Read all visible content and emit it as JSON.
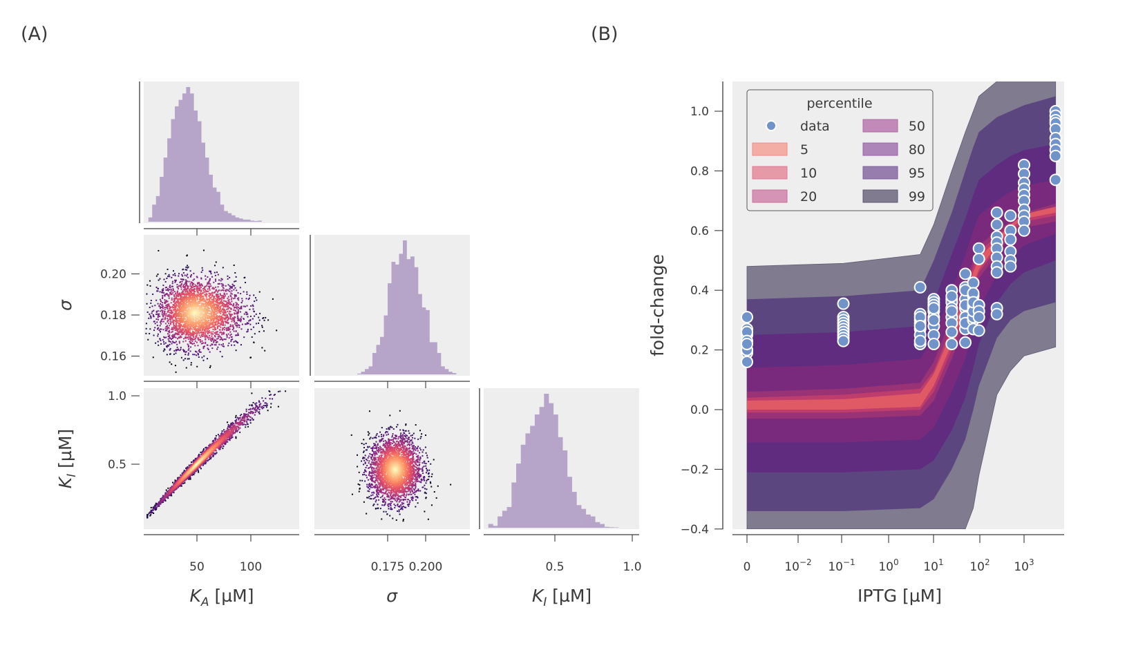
{
  "panel_labels": {
    "a": "(A)",
    "b": "(B)"
  },
  "colors": {
    "background": "#eeeeee",
    "histogram": "#b6a4c9",
    "axis": "#3a3a3a",
    "data_point": "#7093c9",
    "data_point_edge": "#ffffff"
  },
  "chart_data": [
    {
      "id": "corner-plot",
      "type": "scatter",
      "title": "",
      "parameters": [
        {
          "key": "KA",
          "label_main": "K",
          "label_sub": "A",
          "label_unit": " [µM]",
          "range": [
            0,
            145
          ],
          "ticks": [
            50,
            100
          ],
          "tick_labels": [
            "50",
            "100"
          ]
        },
        {
          "key": "sigma",
          "label_main": "σ",
          "label_sub": "",
          "label_unit": "",
          "range": [
            0.152,
            0.218
          ],
          "ticks": [
            0.175,
            0.2
          ],
          "tick_labels": [
            "0.175",
            "0.200"
          ],
          "y_ticks": [
            0.16,
            0.18,
            0.2
          ],
          "y_tick_labels": [
            "0.16",
            "0.18",
            "0.20"
          ]
        },
        {
          "key": "KI",
          "label_main": "K",
          "label_sub": "I",
          "label_unit": " [µM]",
          "range": [
            0.04,
            1.05
          ],
          "ticks": [
            0.5,
            1.0
          ],
          "tick_labels": [
            "0.5",
            "1.0"
          ]
        }
      ],
      "histograms": {
        "KA": {
          "bin_start": 5,
          "bin_width": 3.5,
          "counts": [
            2,
            8,
            12,
            21,
            30,
            39,
            48,
            54,
            57,
            60,
            63,
            60,
            52,
            47,
            37,
            30,
            22,
            16,
            14,
            8,
            5,
            4,
            3,
            2,
            1.5,
            1,
            1,
            0.5,
            0.3,
            0.5
          ]
        },
        "sigma": {
          "bin_start": 0.155,
          "bin_width": 0.0025,
          "counts": [
            0.3,
            1,
            2,
            3,
            8,
            11,
            14,
            22,
            34,
            42,
            41,
            45,
            50,
            43,
            44,
            40,
            30,
            25,
            24,
            12,
            12,
            8,
            3,
            2,
            1,
            0.5
          ]
        },
        "KI": {
          "bin_start": 0.07,
          "bin_width": 0.03,
          "counts": [
            2,
            1,
            6,
            9,
            11,
            24,
            34,
            44,
            50,
            54,
            60,
            64,
            71,
            66,
            60,
            48,
            41,
            27,
            19,
            12,
            10,
            7,
            6,
            3,
            2,
            0.5,
            0.3,
            0.2
          ]
        }
      },
      "scatter_pairs": [
        {
          "x": "KA",
          "y": "sigma",
          "center": [
            48,
            0.181
          ],
          "spread": [
            17,
            0.0085
          ],
          "correlation": 0.0,
          "n_points": 3000
        },
        {
          "x": "KA",
          "y": "KI",
          "center": [
            50,
            0.46
          ],
          "spread": [
            18,
            0.13
          ],
          "correlation": 0.99,
          "n_points": 3000
        },
        {
          "x": "sigma",
          "y": "KI",
          "center": [
            0.18,
            0.46
          ],
          "spread": [
            0.0085,
            0.12
          ],
          "correlation": 0.0,
          "n_points": 3000
        }
      ],
      "density_colormap": "magma"
    },
    {
      "id": "fold-change-plot",
      "type": "area",
      "title": "",
      "xlabel": "IPTG [µM]",
      "ylabel": "fold-change",
      "xscale": "symlog",
      "ylim": [
        -0.4,
        1.1
      ],
      "y_ticks": [
        -0.4,
        -0.2,
        0.0,
        0.2,
        0.4,
        0.6,
        0.8,
        1.0
      ],
      "y_tick_labels": [
        "−0.4",
        "−0.2",
        "0.0",
        "0.2",
        "0.4",
        "0.6",
        "0.8",
        "1.0"
      ],
      "x_ticks": [
        0,
        0.01,
        0.1,
        1,
        10,
        100,
        1000
      ],
      "x_tick_labels": [
        {
          "base": "0",
          "exp": ""
        },
        {
          "base": "10",
          "exp": "−2"
        },
        {
          "base": "10",
          "exp": "−1"
        },
        {
          "base": "10",
          "exp": "0"
        },
        {
          "base": "10",
          "exp": "1"
        },
        {
          "base": "10",
          "exp": "2"
        },
        {
          "base": "10",
          "exp": "3"
        }
      ],
      "band_x": [
        0,
        0.1,
        5,
        10,
        25,
        50,
        75,
        100,
        250,
        500,
        1000,
        5000
      ],
      "percentile_bands": [
        {
          "percentile": 99,
          "color": "#807b8f",
          "lower": [
            -0.4,
            -0.4,
            -0.4,
            -0.4,
            -0.4,
            -0.4,
            -0.33,
            -0.22,
            0.05,
            0.13,
            0.18,
            0.21
          ],
          "upper": [
            0.48,
            0.49,
            0.52,
            0.62,
            0.8,
            0.93,
            1.0,
            1.05,
            1.1,
            1.1,
            1.1,
            1.1
          ]
        },
        {
          "percentile": 95,
          "color": "#5c4680",
          "lower": [
            -0.34,
            -0.34,
            -0.33,
            -0.3,
            -0.2,
            -0.1,
            0.0,
            0.08,
            0.24,
            0.3,
            0.33,
            0.36
          ],
          "upper": [
            0.37,
            0.38,
            0.4,
            0.5,
            0.66,
            0.8,
            0.88,
            0.93,
            0.98,
            1.0,
            1.02,
            1.05
          ]
        },
        {
          "percentile": 80,
          "color": "#5f2c80",
          "lower": [
            -0.21,
            -0.21,
            -0.2,
            -0.17,
            -0.07,
            0.04,
            0.14,
            0.22,
            0.36,
            0.42,
            0.46,
            0.5
          ],
          "upper": [
            0.25,
            0.26,
            0.28,
            0.36,
            0.52,
            0.64,
            0.72,
            0.77,
            0.82,
            0.85,
            0.87,
            0.89
          ]
        },
        {
          "percentile": 50,
          "color": "#7a2a7c",
          "lower": [
            -0.11,
            -0.11,
            -0.1,
            -0.06,
            0.06,
            0.17,
            0.27,
            0.34,
            0.45,
            0.51,
            0.55,
            0.59
          ],
          "upper": [
            0.14,
            0.15,
            0.17,
            0.24,
            0.4,
            0.52,
            0.6,
            0.65,
            0.7,
            0.73,
            0.75,
            0.77
          ]
        },
        {
          "percentile": 20,
          "color": "#993376",
          "lower": [
            -0.03,
            -0.03,
            -0.02,
            0.03,
            0.17,
            0.29,
            0.38,
            0.44,
            0.52,
            0.58,
            0.61,
            0.63
          ],
          "upper": [
            0.06,
            0.07,
            0.09,
            0.16,
            0.31,
            0.43,
            0.5,
            0.55,
            0.6,
            0.63,
            0.66,
            0.69
          ]
        },
        {
          "percentile": 10,
          "color": "#bf3d6c",
          "lower": [
            -0.01,
            -0.01,
            0.0,
            0.06,
            0.2,
            0.32,
            0.4,
            0.46,
            0.54,
            0.6,
            0.63,
            0.65
          ],
          "upper": [
            0.04,
            0.05,
            0.07,
            0.13,
            0.28,
            0.4,
            0.48,
            0.53,
            0.58,
            0.62,
            0.65,
            0.67
          ]
        },
        {
          "percentile": 5,
          "color": "#df5a64",
          "lower": [
            0.0,
            0.0,
            0.01,
            0.08,
            0.22,
            0.34,
            0.42,
            0.47,
            0.55,
            0.61,
            0.64,
            0.66
          ],
          "upper": [
            0.03,
            0.035,
            0.055,
            0.12,
            0.26,
            0.38,
            0.46,
            0.51,
            0.57,
            0.62,
            0.655,
            0.68
          ]
        }
      ],
      "data_points": {
        "x": [
          0,
          0,
          0,
          0,
          0,
          0,
          0,
          0,
          0,
          0,
          0.1,
          0.1,
          0.1,
          0.1,
          0.1,
          0.1,
          0.1,
          0.1,
          0.1,
          0.1,
          5,
          5,
          5,
          5,
          5,
          5,
          5,
          5,
          5,
          5,
          10,
          10,
          10,
          10,
          10,
          10,
          10,
          10,
          10,
          10,
          25,
          25,
          25,
          25,
          25,
          25,
          25,
          25,
          25,
          25,
          50,
          50,
          50,
          50,
          50,
          50,
          50,
          50,
          50,
          50,
          75,
          75,
          75,
          75,
          75,
          75,
          75,
          75,
          75,
          75,
          100,
          100,
          100,
          100,
          100,
          100,
          250,
          250,
          250,
          250,
          250,
          250,
          250,
          250,
          250,
          250,
          500,
          500,
          500,
          500,
          500,
          500,
          1000,
          1000,
          1000,
          1000,
          1000,
          1000,
          1000,
          1000,
          1000,
          1000,
          5000,
          5000,
          5000,
          5000,
          5000,
          5000,
          5000,
          5000,
          5000,
          5000
        ],
        "y": [
          0.31,
          0.27,
          0.25,
          0.26,
          0.23,
          0.2,
          0.19,
          0.16,
          0.2,
          0.22,
          0.355,
          0.31,
          0.3,
          0.29,
          0.28,
          0.27,
          0.26,
          0.25,
          0.24,
          0.23,
          0.41,
          0.32,
          0.3,
          0.29,
          0.27,
          0.25,
          0.22,
          0.31,
          0.28,
          0.23,
          0.37,
          0.36,
          0.35,
          0.33,
          0.31,
          0.28,
          0.25,
          0.22,
          0.3,
          0.34,
          0.4,
          0.37,
          0.36,
          0.34,
          0.31,
          0.29,
          0.26,
          0.22,
          0.33,
          0.38,
          0.455,
          0.41,
          0.37,
          0.34,
          0.31,
          0.27,
          0.225,
          0.35,
          0.29,
          0.4,
          0.425,
          0.38,
          0.35,
          0.34,
          0.3,
          0.27,
          0.31,
          0.39,
          0.33,
          0.36,
          0.54,
          0.505,
          0.35,
          0.33,
          0.31,
          0.265,
          0.66,
          0.62,
          0.58,
          0.56,
          0.54,
          0.51,
          0.48,
          0.46,
          0.34,
          0.32,
          0.65,
          0.6,
          0.57,
          0.53,
          0.5,
          0.48,
          0.82,
          0.79,
          0.76,
          0.74,
          0.72,
          0.7,
          0.67,
          0.65,
          0.63,
          0.6,
          1.0,
          0.985,
          0.97,
          0.96,
          0.94,
          0.91,
          0.89,
          0.87,
          0.85,
          0.77
        ]
      },
      "legend": {
        "title": "percentile",
        "placement": "top-left",
        "entries": [
          {
            "label": "data",
            "kind": "marker",
            "color": "#7093c9"
          },
          {
            "label": "5",
            "kind": "patch",
            "color": "#f3ada4",
            "edge": "#ef8a8a"
          },
          {
            "label": "10",
            "kind": "patch",
            "color": "#e69aa8",
            "edge": "#e07b94"
          },
          {
            "label": "20",
            "kind": "patch",
            "color": "#d593b5",
            "edge": "#cc70a0"
          },
          {
            "label": "50",
            "kind": "patch",
            "color": "#c18ab8",
            "edge": "#b06aa6"
          },
          {
            "label": "80",
            "kind": "patch",
            "color": "#ad85b8",
            "edge": "#9a62ac"
          },
          {
            "label": "95",
            "kind": "patch",
            "color": "#967dae",
            "edge": "#7e5e9e"
          },
          {
            "label": "99",
            "kind": "patch",
            "color": "#807b8f",
            "edge": "#5f5a72"
          }
        ]
      }
    }
  ]
}
